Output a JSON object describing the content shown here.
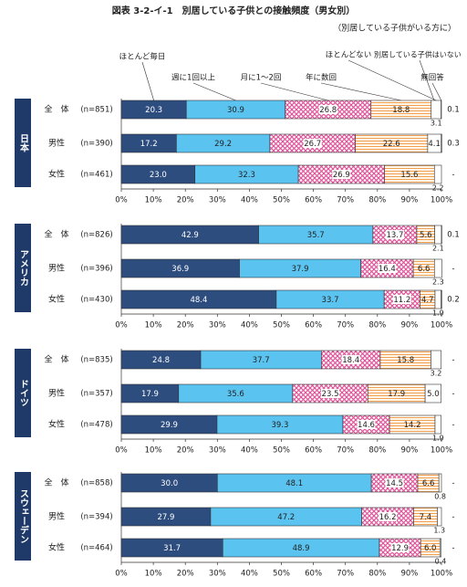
{
  "title": "図表 3-2-イ-1　別居している子供との接触頻度（男女別）",
  "subtitle": "（別居している子供がいる方に）",
  "series": [
    {
      "name": "ほとんど毎日",
      "color": "#2e4d7f",
      "pattern": "solid"
    },
    {
      "name": "週に1回以上",
      "color": "#5bc3f0",
      "pattern": "solid"
    },
    {
      "name": "月に1～2回",
      "color": "#e0559a",
      "pattern": "cross"
    },
    {
      "name": "年に数回",
      "color": "#f0a050",
      "pattern": "hlines"
    },
    {
      "name": "ほとんどない",
      "color": "#ffffff",
      "pattern": "solid"
    },
    {
      "name": "無回答",
      "color": "#ffffff",
      "pattern": "solid"
    }
  ],
  "annotation": "別居している子供はいない",
  "chart_data": [
    {
      "type": "bar",
      "orientation": "horizontal",
      "stacked": true,
      "title": "日本",
      "categories": [
        "全　体",
        "男性",
        "女性"
      ],
      "n_labels": [
        "(n=851)",
        "(n=390)",
        "(n=461)"
      ],
      "series": [
        {
          "values": [
            20.3,
            17.2,
            23.0
          ],
          "value_labels": [
            "20.3",
            "17.2",
            "23.0"
          ]
        },
        {
          "values": [
            30.9,
            29.2,
            32.3
          ],
          "value_labels": [
            "30.9",
            "29.2",
            "32.3"
          ]
        },
        {
          "values": [
            26.8,
            26.7,
            26.9
          ],
          "value_labels": [
            "26.8",
            "26.7",
            "26.9"
          ]
        },
        {
          "values": [
            18.8,
            22.6,
            15.6
          ],
          "value_labels": [
            "18.8",
            "22.6",
            "15.6"
          ]
        },
        {
          "values": [
            3.1,
            4.1,
            2.2
          ],
          "value_labels": [
            "3.1",
            "4.1",
            "2.2"
          ]
        },
        {
          "values": [
            0.1,
            0.3,
            null
          ],
          "value_labels": [
            "0.1",
            "0.3",
            "-"
          ]
        }
      ],
      "xlim": [
        0,
        100
      ],
      "xticks": [
        {
          "value": 0,
          "label": "0%"
        },
        {
          "value": 10,
          "label": "10%"
        },
        {
          "value": 20,
          "label": "20%"
        },
        {
          "value": 30,
          "label": "30%"
        },
        {
          "value": 40,
          "label": "40%"
        },
        {
          "value": 50,
          "label": "50%"
        },
        {
          "value": 60,
          "label": "60%"
        },
        {
          "value": 70,
          "label": "70%"
        },
        {
          "value": 80,
          "label": "80%"
        },
        {
          "value": 90,
          "label": "90%"
        },
        {
          "value": 100,
          "label": "100%"
        }
      ]
    },
    {
      "type": "bar",
      "orientation": "horizontal",
      "stacked": true,
      "title": "アメリカ",
      "categories": [
        "全　体",
        "男性",
        "女性"
      ],
      "n_labels": [
        "(n=826)",
        "(n=396)",
        "(n=430)"
      ],
      "series": [
        {
          "values": [
            42.9,
            36.9,
            48.4
          ],
          "value_labels": [
            "42.9",
            "36.9",
            "48.4"
          ]
        },
        {
          "values": [
            35.7,
            37.9,
            33.7
          ],
          "value_labels": [
            "35.7",
            "37.9",
            "33.7"
          ]
        },
        {
          "values": [
            13.7,
            16.4,
            11.2
          ],
          "value_labels": [
            "13.7",
            "16.4",
            "11.2"
          ]
        },
        {
          "values": [
            5.6,
            6.6,
            4.7
          ],
          "value_labels": [
            "5.6",
            "6.6",
            "4.7"
          ]
        },
        {
          "values": [
            2.1,
            2.3,
            1.9
          ],
          "value_labels": [
            "2.1",
            "2.3",
            "1.9"
          ]
        },
        {
          "values": [
            0.1,
            null,
            0.2
          ],
          "value_labels": [
            "0.1",
            "-",
            "0.2"
          ]
        }
      ],
      "xlim": [
        0,
        100
      ],
      "xticks": [
        {
          "value": 0,
          "label": "0%"
        },
        {
          "value": 10,
          "label": "10%"
        },
        {
          "value": 20,
          "label": "20%"
        },
        {
          "value": 30,
          "label": "30%"
        },
        {
          "value": 40,
          "label": "40%"
        },
        {
          "value": 50,
          "label": "50%"
        },
        {
          "value": 60,
          "label": "60%"
        },
        {
          "value": 70,
          "label": "70%"
        },
        {
          "value": 80,
          "label": "80%"
        },
        {
          "value": 90,
          "label": "90%"
        },
        {
          "value": 100,
          "label": "100%"
        }
      ]
    },
    {
      "type": "bar",
      "orientation": "horizontal",
      "stacked": true,
      "title": "ドイツ",
      "categories": [
        "全　体",
        "男性",
        "女性"
      ],
      "n_labels": [
        "(n=835)",
        "(n=357)",
        "(n=478)"
      ],
      "series": [
        {
          "values": [
            24.8,
            17.9,
            29.9
          ],
          "value_labels": [
            "24.8",
            "17.9",
            "29.9"
          ]
        },
        {
          "values": [
            37.7,
            35.6,
            39.3
          ],
          "value_labels": [
            "37.7",
            "35.6",
            "39.3"
          ]
        },
        {
          "values": [
            18.4,
            23.5,
            14.6
          ],
          "value_labels": [
            "18.4",
            "23.5",
            "14.6"
          ]
        },
        {
          "values": [
            15.8,
            17.9,
            14.2
          ],
          "value_labels": [
            "15.8",
            "17.9",
            "14.2"
          ]
        },
        {
          "values": [
            3.2,
            5.0,
            1.9
          ],
          "value_labels": [
            "3.2",
            "5.0",
            "1.9"
          ]
        },
        {
          "values": [
            null,
            null,
            null
          ],
          "value_labels": [
            "-",
            "-",
            "-"
          ]
        }
      ],
      "xlim": [
        0,
        100
      ],
      "xticks": [
        {
          "value": 0,
          "label": "0%"
        },
        {
          "value": 10,
          "label": "10%"
        },
        {
          "value": 20,
          "label": "20%"
        },
        {
          "value": 30,
          "label": "30%"
        },
        {
          "value": 40,
          "label": "40%"
        },
        {
          "value": 50,
          "label": "50%"
        },
        {
          "value": 60,
          "label": "60%"
        },
        {
          "value": 70,
          "label": "70%"
        },
        {
          "value": 80,
          "label": "80%"
        },
        {
          "value": 90,
          "label": "90%"
        },
        {
          "value": 100,
          "label": "100%"
        }
      ]
    },
    {
      "type": "bar",
      "orientation": "horizontal",
      "stacked": true,
      "title": "スウェーデン",
      "categories": [
        "全　体",
        "男性",
        "女性"
      ],
      "n_labels": [
        "(n=858)",
        "(n=394)",
        "(n=464)"
      ],
      "series": [
        {
          "values": [
            30.0,
            27.9,
            31.7
          ],
          "value_labels": [
            "30.0",
            "27.9",
            "31.7"
          ]
        },
        {
          "values": [
            48.1,
            47.2,
            48.9
          ],
          "value_labels": [
            "48.1",
            "47.2",
            "48.9"
          ]
        },
        {
          "values": [
            14.5,
            16.2,
            12.9
          ],
          "value_labels": [
            "14.5",
            "16.2",
            "12.9"
          ]
        },
        {
          "values": [
            6.6,
            7.4,
            6.0
          ],
          "value_labels": [
            "6.6",
            "7.4",
            "6.0"
          ]
        },
        {
          "values": [
            0.8,
            1.3,
            0.4
          ],
          "value_labels": [
            "0.8",
            "1.3",
            "0.4"
          ]
        },
        {
          "values": [
            null,
            null,
            null
          ],
          "value_labels": [
            "-",
            "-",
            "-"
          ]
        }
      ],
      "xlim": [
        0,
        100
      ],
      "xticks": [
        {
          "value": 0,
          "label": "0%"
        },
        {
          "value": 10,
          "label": "10%"
        },
        {
          "value": 20,
          "label": "20%"
        },
        {
          "value": 30,
          "label": "30%"
        },
        {
          "value": 40,
          "label": "40%"
        },
        {
          "value": 50,
          "label": "50%"
        },
        {
          "value": 60,
          "label": "60%"
        },
        {
          "value": 70,
          "label": "70%"
        },
        {
          "value": 80,
          "label": "80%"
        },
        {
          "value": 90,
          "label": "90%"
        },
        {
          "value": 100,
          "label": "100%"
        }
      ]
    }
  ]
}
